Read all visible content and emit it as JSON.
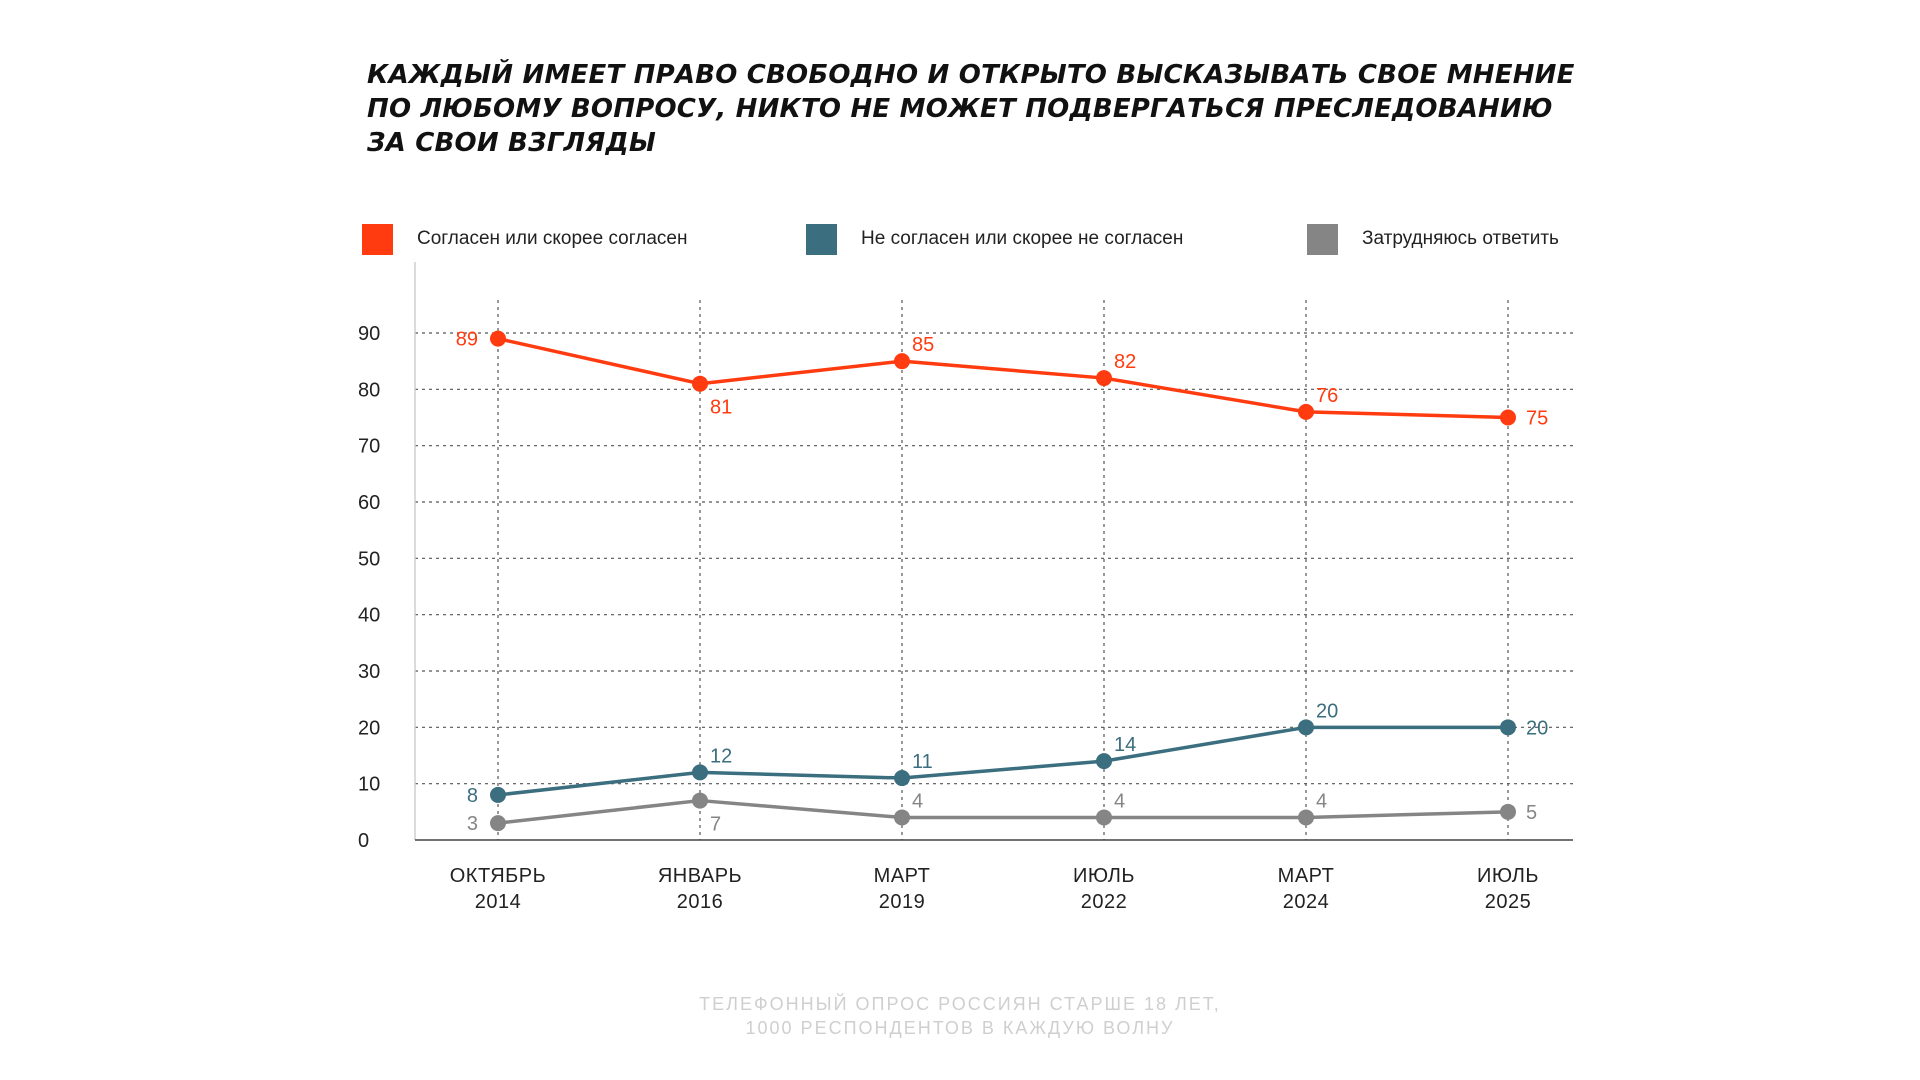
{
  "title_lines": [
    "КАЖДЫЙ ИМЕЕТ ПРАВО СВОБОДНО И ОТКРЫТО ВЫСКАЗЫВАТЬ СВОЕ МНЕНИЕ",
    "ПО ЛЮБОМУ ВОПРОСУ, НИКТО НЕ МОЖЕТ ПОДВЕРГАТЬСЯ ПРЕСЛЕДОВАНИЮ",
    "ЗА СВОИ ВЗГЛЯДЫ"
  ],
  "note_lines": [
    "ТЕЛЕФОННЫЙ ОПРОС РОССИЯН СТАРШЕ 18 ЛЕТ,",
    "1000 РЕСПОНДЕНТОВ В КАЖДУЮ ВОЛНУ"
  ],
  "chart_data": {
    "type": "line",
    "title": "КАЖДЫЙ ИМЕЕТ ПРАВО СВОБОДНО И ОТКРЫТО ВЫСКАЗЫВАТЬ СВОЕ МНЕНИЕ ПО ЛЮБОМУ ВОПРОСУ, НИКТО НЕ МОЖЕТ ПОДВЕРГАТЬСЯ ПРЕСЛЕДОВАНИЮ ЗА СВОИ ВЗГЛЯДЫ",
    "categories": [
      [
        "ОКТЯБРЬ",
        "2014"
      ],
      [
        "ЯНВАРЬ",
        "2016"
      ],
      [
        "МАРТ",
        "2019"
      ],
      [
        "ИЮЛЬ",
        "2022"
      ],
      [
        "МАРТ",
        "2024"
      ],
      [
        "ИЮЛЬ",
        "2025"
      ]
    ],
    "series": [
      {
        "name": "Согласен или скорее согласен",
        "color": "#ff3b0f",
        "values": [
          89,
          81,
          85,
          82,
          76,
          75
        ],
        "label_positions": [
          "left",
          "below",
          "above",
          "above",
          "above",
          "right"
        ]
      },
      {
        "name": "Не согласен или скорее не согласен",
        "color": "#3b6e7e",
        "values": [
          8,
          12,
          11,
          14,
          20,
          20
        ],
        "label_positions": [
          "left",
          "above",
          "above",
          "above",
          "above",
          "right"
        ]
      },
      {
        "name": "Затрудняюсь ответить",
        "color": "#858585",
        "values": [
          3,
          7,
          4,
          4,
          4,
          5
        ],
        "label_positions": [
          "left",
          "below",
          "above",
          "above",
          "above",
          "right"
        ]
      }
    ],
    "yticks": [
      0,
      10,
      20,
      30,
      40,
      50,
      60,
      70,
      80,
      90
    ],
    "ylim": [
      0,
      90
    ],
    "grid": true,
    "grid_style": "dotted",
    "legend_position": "top",
    "xlabel": "",
    "ylabel": ""
  }
}
